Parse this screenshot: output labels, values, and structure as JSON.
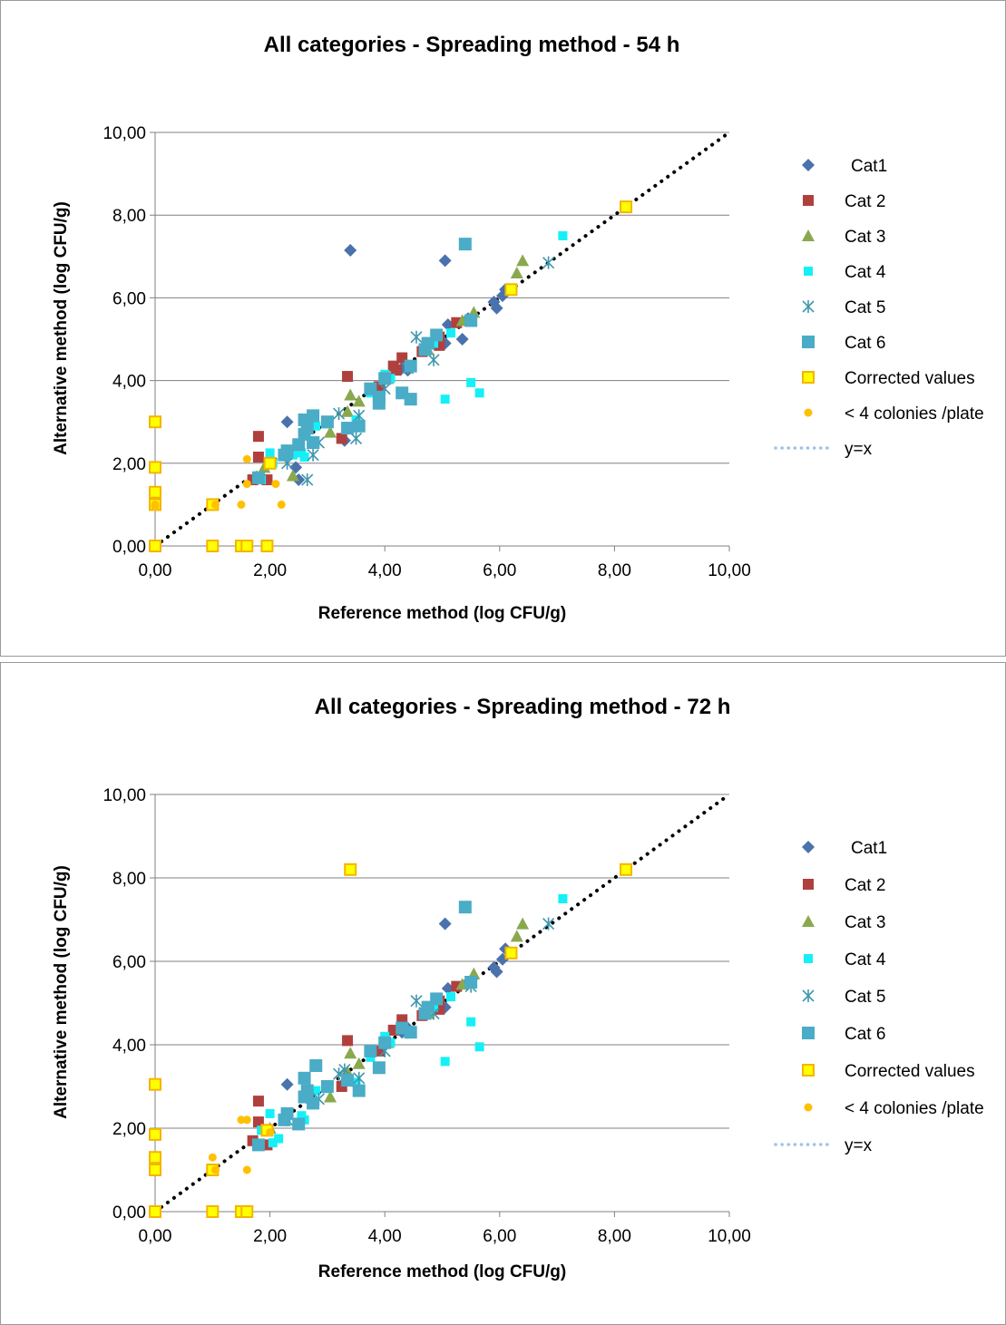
{
  "colors": {
    "cat1": "#4a72ad",
    "cat2": "#b0403e",
    "cat3": "#8aa84e",
    "cat4": "#14f0f8",
    "cat5": "#3d96ad",
    "cat6": "#4aacc6",
    "corrected_fill": "#ffff00",
    "corrected_stroke": "#f5b400",
    "few_colonies": "#ffc000",
    "identity_line": "#000000",
    "legend_line": "#9dc3e6",
    "gridline": "#808080"
  },
  "chart_data": [
    {
      "type": "scatter",
      "title": "All categories - Spreading method - 54 h",
      "xlabel": "Reference method (log CFU/g)",
      "ylabel": "Alternative method (log CFU/g)",
      "xlim": [
        0,
        10
      ],
      "ylim": [
        0,
        10
      ],
      "xticks": [
        "0,00",
        "2,00",
        "4,00",
        "6,00",
        "8,00",
        "10,00"
      ],
      "yticks": [
        "0,00",
        "2,00",
        "4,00",
        "6,00",
        "8,00",
        "10,00"
      ],
      "grid": "horizontal major",
      "legend_position": "right",
      "series": [
        {
          "name": "Cat1",
          "marker": "diamond",
          "color": "cat1",
          "points": [
            [
              3.4,
              7.15
            ],
            [
              5.05,
              6.9
            ],
            [
              2.3,
              3.0
            ],
            [
              2.45,
              1.9
            ],
            [
              2.5,
              1.6
            ],
            [
              3.3,
              2.55
            ],
            [
              4.3,
              4.3
            ],
            [
              4.4,
              4.25
            ],
            [
              5.05,
              4.9
            ],
            [
              5.1,
              5.35
            ],
            [
              5.35,
              5.0
            ],
            [
              5.45,
              5.5
            ],
            [
              5.9,
              5.9
            ],
            [
              5.95,
              5.75
            ],
            [
              6.05,
              6.05
            ],
            [
              6.1,
              6.2
            ],
            [
              4.9,
              4.9
            ]
          ]
        },
        {
          "name": "Cat 2",
          "marker": "square",
          "color": "cat2",
          "points": [
            [
              3.35,
              4.1
            ],
            [
              1.8,
              2.65
            ],
            [
              1.8,
              2.15
            ],
            [
              1.7,
              1.6
            ],
            [
              1.95,
              1.6
            ],
            [
              3.25,
              2.6
            ],
            [
              4.15,
              4.35
            ],
            [
              4.3,
              4.55
            ],
            [
              4.65,
              4.7
            ],
            [
              4.95,
              4.85
            ],
            [
              4.95,
              5.05
            ],
            [
              5.25,
              5.4
            ],
            [
              4.2,
              4.25
            ],
            [
              3.9,
              3.85
            ]
          ]
        },
        {
          "name": "Cat 3",
          "marker": "triangle",
          "color": "cat3",
          "points": [
            [
              3.4,
              3.65
            ],
            [
              3.55,
              3.5
            ],
            [
              3.35,
              3.25
            ],
            [
              2.4,
              1.7
            ],
            [
              1.9,
              1.9
            ],
            [
              2.0,
              2.0
            ],
            [
              6.4,
              6.9
            ],
            [
              6.3,
              6.6
            ],
            [
              5.55,
              5.65
            ],
            [
              5.35,
              5.45
            ],
            [
              4.75,
              4.75
            ],
            [
              3.05,
              2.75
            ],
            [
              4.05,
              4.05
            ]
          ]
        },
        {
          "name": "Cat 4",
          "marker": "square-small",
          "color": "cat4",
          "points": [
            [
              7.1,
              7.5
            ],
            [
              5.5,
              3.95
            ],
            [
              5.65,
              3.7
            ],
            [
              5.05,
              3.55
            ],
            [
              4.0,
              4.15
            ],
            [
              4.1,
              4.05
            ],
            [
              3.75,
              3.7
            ],
            [
              3.5,
              3.05
            ],
            [
              2.8,
              2.9
            ],
            [
              2.55,
              2.25
            ],
            [
              2.0,
              2.25
            ],
            [
              2.05,
              2.0
            ],
            [
              1.85,
              1.6
            ],
            [
              2.4,
              2.2
            ],
            [
              3.0,
              2.95
            ],
            [
              5.15,
              5.15
            ],
            [
              4.85,
              4.9
            ],
            [
              2.6,
              2.15
            ]
          ]
        },
        {
          "name": "Cat 5",
          "marker": "star",
          "color": "cat5",
          "points": [
            [
              6.85,
              6.85
            ],
            [
              4.55,
              5.05
            ],
            [
              4.85,
              4.5
            ],
            [
              5.5,
              5.45
            ],
            [
              4.0,
              3.8
            ],
            [
              3.2,
              3.2
            ],
            [
              3.5,
              2.6
            ],
            [
              2.65,
              1.6
            ],
            [
              2.85,
              2.5
            ],
            [
              2.3,
              2.0
            ],
            [
              2.75,
              2.2
            ],
            [
              4.4,
              4.3
            ],
            [
              3.55,
              3.15
            ]
          ]
        },
        {
          "name": "Cat 6",
          "marker": "square-large",
          "color": "cat6",
          "points": [
            [
              5.4,
              7.3
            ],
            [
              5.5,
              5.45
            ],
            [
              4.9,
              5.1
            ],
            [
              4.75,
              4.9
            ],
            [
              4.7,
              4.75
            ],
            [
              4.45,
              4.35
            ],
            [
              4.3,
              3.7
            ],
            [
              4.45,
              3.55
            ],
            [
              3.9,
              3.45
            ],
            [
              3.9,
              3.6
            ],
            [
              3.75,
              3.8
            ],
            [
              3.55,
              2.9
            ],
            [
              3.35,
              2.85
            ],
            [
              2.75,
              3.15
            ],
            [
              2.6,
              3.05
            ],
            [
              2.65,
              2.85
            ],
            [
              2.75,
              2.5
            ],
            [
              2.5,
              2.45
            ],
            [
              2.3,
              2.3
            ],
            [
              2.25,
              2.2
            ],
            [
              1.8,
              1.65
            ],
            [
              4.0,
              4.05
            ],
            [
              3.0,
              3.0
            ],
            [
              2.6,
              2.7
            ]
          ]
        },
        {
          "name": "Corrected values",
          "marker": "square-outline",
          "color": "corrected_fill",
          "points": [
            [
              8.2,
              8.2
            ],
            [
              6.2,
              6.2
            ],
            [
              0,
              3.0
            ],
            [
              0,
              1.9
            ],
            [
              0,
              1.3
            ],
            [
              0,
              1.0
            ],
            [
              0,
              0
            ],
            [
              1.0,
              1.0
            ],
            [
              1.0,
              0
            ],
            [
              1.5,
              0
            ],
            [
              1.6,
              0
            ],
            [
              1.95,
              0
            ],
            [
              2.0,
              2.0
            ]
          ]
        },
        {
          "name": "< 4 colonies /plate",
          "marker": "circle",
          "color": "few_colonies",
          "points": [
            [
              1.6,
              2.1
            ],
            [
              1.6,
              1.5
            ],
            [
              1.5,
              1.0
            ],
            [
              2.1,
              1.5
            ],
            [
              2.2,
              1.0
            ],
            [
              1.05,
              1.0
            ],
            [
              0,
              1.0
            ],
            [
              0,
              0.95
            ]
          ]
        },
        {
          "name": "y=x",
          "marker": "dotted-line",
          "color": "identity_line",
          "points": [
            [
              0,
              0
            ],
            [
              10,
              10
            ]
          ]
        }
      ]
    },
    {
      "type": "scatter",
      "title": "All categories - Spreading method - 72 h",
      "xlabel": "Reference method (log CFU/g)",
      "ylabel": "Alternative method (log CFU/g)",
      "xlim": [
        0,
        10
      ],
      "ylim": [
        0,
        10
      ],
      "xticks": [
        "0,00",
        "2,00",
        "4,00",
        "6,00",
        "8,00",
        "10,00"
      ],
      "yticks": [
        "0,00",
        "2,00",
        "4,00",
        "6,00",
        "8,00",
        "10,00"
      ],
      "grid": "horizontal major",
      "legend_position": "right",
      "series": [
        {
          "name": "Cat1",
          "marker": "diamond",
          "color": "cat1",
          "points": [
            [
              5.05,
              6.9
            ],
            [
              2.3,
              3.05
            ],
            [
              4.3,
              4.3
            ],
            [
              4.4,
              4.4
            ],
            [
              5.05,
              4.9
            ],
            [
              5.1,
              5.35
            ],
            [
              5.45,
              5.5
            ],
            [
              5.9,
              5.85
            ],
            [
              5.95,
              5.75
            ],
            [
              6.05,
              6.05
            ],
            [
              6.1,
              6.3
            ],
            [
              4.9,
              4.95
            ],
            [
              3.3,
              3.1
            ]
          ]
        },
        {
          "name": "Cat 2",
          "marker": "square",
          "color": "cat2",
          "points": [
            [
              3.35,
              4.1
            ],
            [
              1.8,
              2.65
            ],
            [
              1.8,
              2.15
            ],
            [
              1.7,
              1.7
            ],
            [
              1.95,
              1.6
            ],
            [
              3.25,
              3.0
            ],
            [
              4.15,
              4.35
            ],
            [
              4.3,
              4.6
            ],
            [
              4.65,
              4.7
            ],
            [
              4.95,
              4.85
            ],
            [
              4.95,
              5.05
            ],
            [
              5.25,
              5.4
            ],
            [
              3.9,
              3.85
            ]
          ]
        },
        {
          "name": "Cat 3",
          "marker": "triangle",
          "color": "cat3",
          "points": [
            [
              3.4,
              3.8
            ],
            [
              3.55,
              3.55
            ],
            [
              3.35,
              3.35
            ],
            [
              6.4,
              6.9
            ],
            [
              6.3,
              6.6
            ],
            [
              5.55,
              5.7
            ],
            [
              5.35,
              5.45
            ],
            [
              4.75,
              4.75
            ],
            [
              3.05,
              2.75
            ],
            [
              4.05,
              4.05
            ],
            [
              2.0,
              2.0
            ]
          ]
        },
        {
          "name": "Cat 4",
          "marker": "square-small",
          "color": "cat4",
          "points": [
            [
              7.1,
              7.5
            ],
            [
              5.5,
              4.55
            ],
            [
              5.65,
              3.95
            ],
            [
              5.05,
              3.6
            ],
            [
              4.0,
              4.2
            ],
            [
              4.1,
              4.05
            ],
            [
              3.75,
              3.7
            ],
            [
              3.5,
              3.1
            ],
            [
              2.8,
              2.9
            ],
            [
              2.55,
              2.3
            ],
            [
              2.0,
              2.35
            ],
            [
              2.05,
              1.65
            ],
            [
              1.85,
              1.95
            ],
            [
              2.15,
              1.75
            ],
            [
              3.0,
              2.95
            ],
            [
              5.15,
              5.15
            ],
            [
              4.85,
              4.9
            ],
            [
              2.6,
              2.2
            ]
          ]
        },
        {
          "name": "Cat 5",
          "marker": "star",
          "color": "cat5",
          "points": [
            [
              6.85,
              6.9
            ],
            [
              4.55,
              5.05
            ],
            [
              4.85,
              4.75
            ],
            [
              5.5,
              5.4
            ],
            [
              4.0,
              3.85
            ],
            [
              3.2,
              3.3
            ],
            [
              3.3,
              3.4
            ],
            [
              2.85,
              2.7
            ],
            [
              2.3,
              2.2
            ],
            [
              2.75,
              2.6
            ],
            [
              4.4,
              4.3
            ],
            [
              3.55,
              3.2
            ]
          ]
        },
        {
          "name": "Cat 6",
          "marker": "square-large",
          "color": "cat6",
          "points": [
            [
              5.4,
              7.3
            ],
            [
              5.5,
              5.5
            ],
            [
              4.9,
              5.1
            ],
            [
              4.75,
              4.9
            ],
            [
              4.7,
              4.75
            ],
            [
              4.45,
              4.3
            ],
            [
              4.3,
              4.4
            ],
            [
              3.9,
              3.45
            ],
            [
              3.75,
              3.85
            ],
            [
              3.55,
              2.9
            ],
            [
              3.35,
              3.15
            ],
            [
              2.8,
              3.5
            ],
            [
              2.6,
              3.2
            ],
            [
              2.65,
              2.9
            ],
            [
              2.75,
              2.6
            ],
            [
              2.5,
              2.1
            ],
            [
              2.3,
              2.35
            ],
            [
              2.25,
              2.2
            ],
            [
              1.8,
              1.6
            ],
            [
              4.0,
              4.05
            ],
            [
              3.0,
              3.0
            ],
            [
              2.6,
              2.75
            ]
          ]
        },
        {
          "name": "Corrected values",
          "marker": "square-outline",
          "color": "corrected_fill",
          "points": [
            [
              3.4,
              8.2
            ],
            [
              8.2,
              8.2
            ],
            [
              6.2,
              6.2
            ],
            [
              0,
              3.05
            ],
            [
              0,
              1.85
            ],
            [
              0,
              1.3
            ],
            [
              0,
              1.0
            ],
            [
              0,
              0
            ],
            [
              1.0,
              1.0
            ],
            [
              1.0,
              0
            ],
            [
              1.5,
              0
            ],
            [
              1.6,
              0
            ],
            [
              1.95,
              1.95
            ]
          ]
        },
        {
          "name": "< 4 colonies /plate",
          "marker": "circle",
          "color": "few_colonies",
          "points": [
            [
              1.5,
              2.2
            ],
            [
              1.6,
              2.2
            ],
            [
              1.6,
              1.0
            ],
            [
              1.0,
              1.3
            ],
            [
              2.0,
              1.9
            ],
            [
              1.05,
              1.0
            ]
          ]
        },
        {
          "name": "y=x",
          "marker": "dotted-line",
          "color": "identity_line",
          "points": [
            [
              0,
              0
            ],
            [
              10,
              10
            ]
          ]
        }
      ]
    }
  ]
}
